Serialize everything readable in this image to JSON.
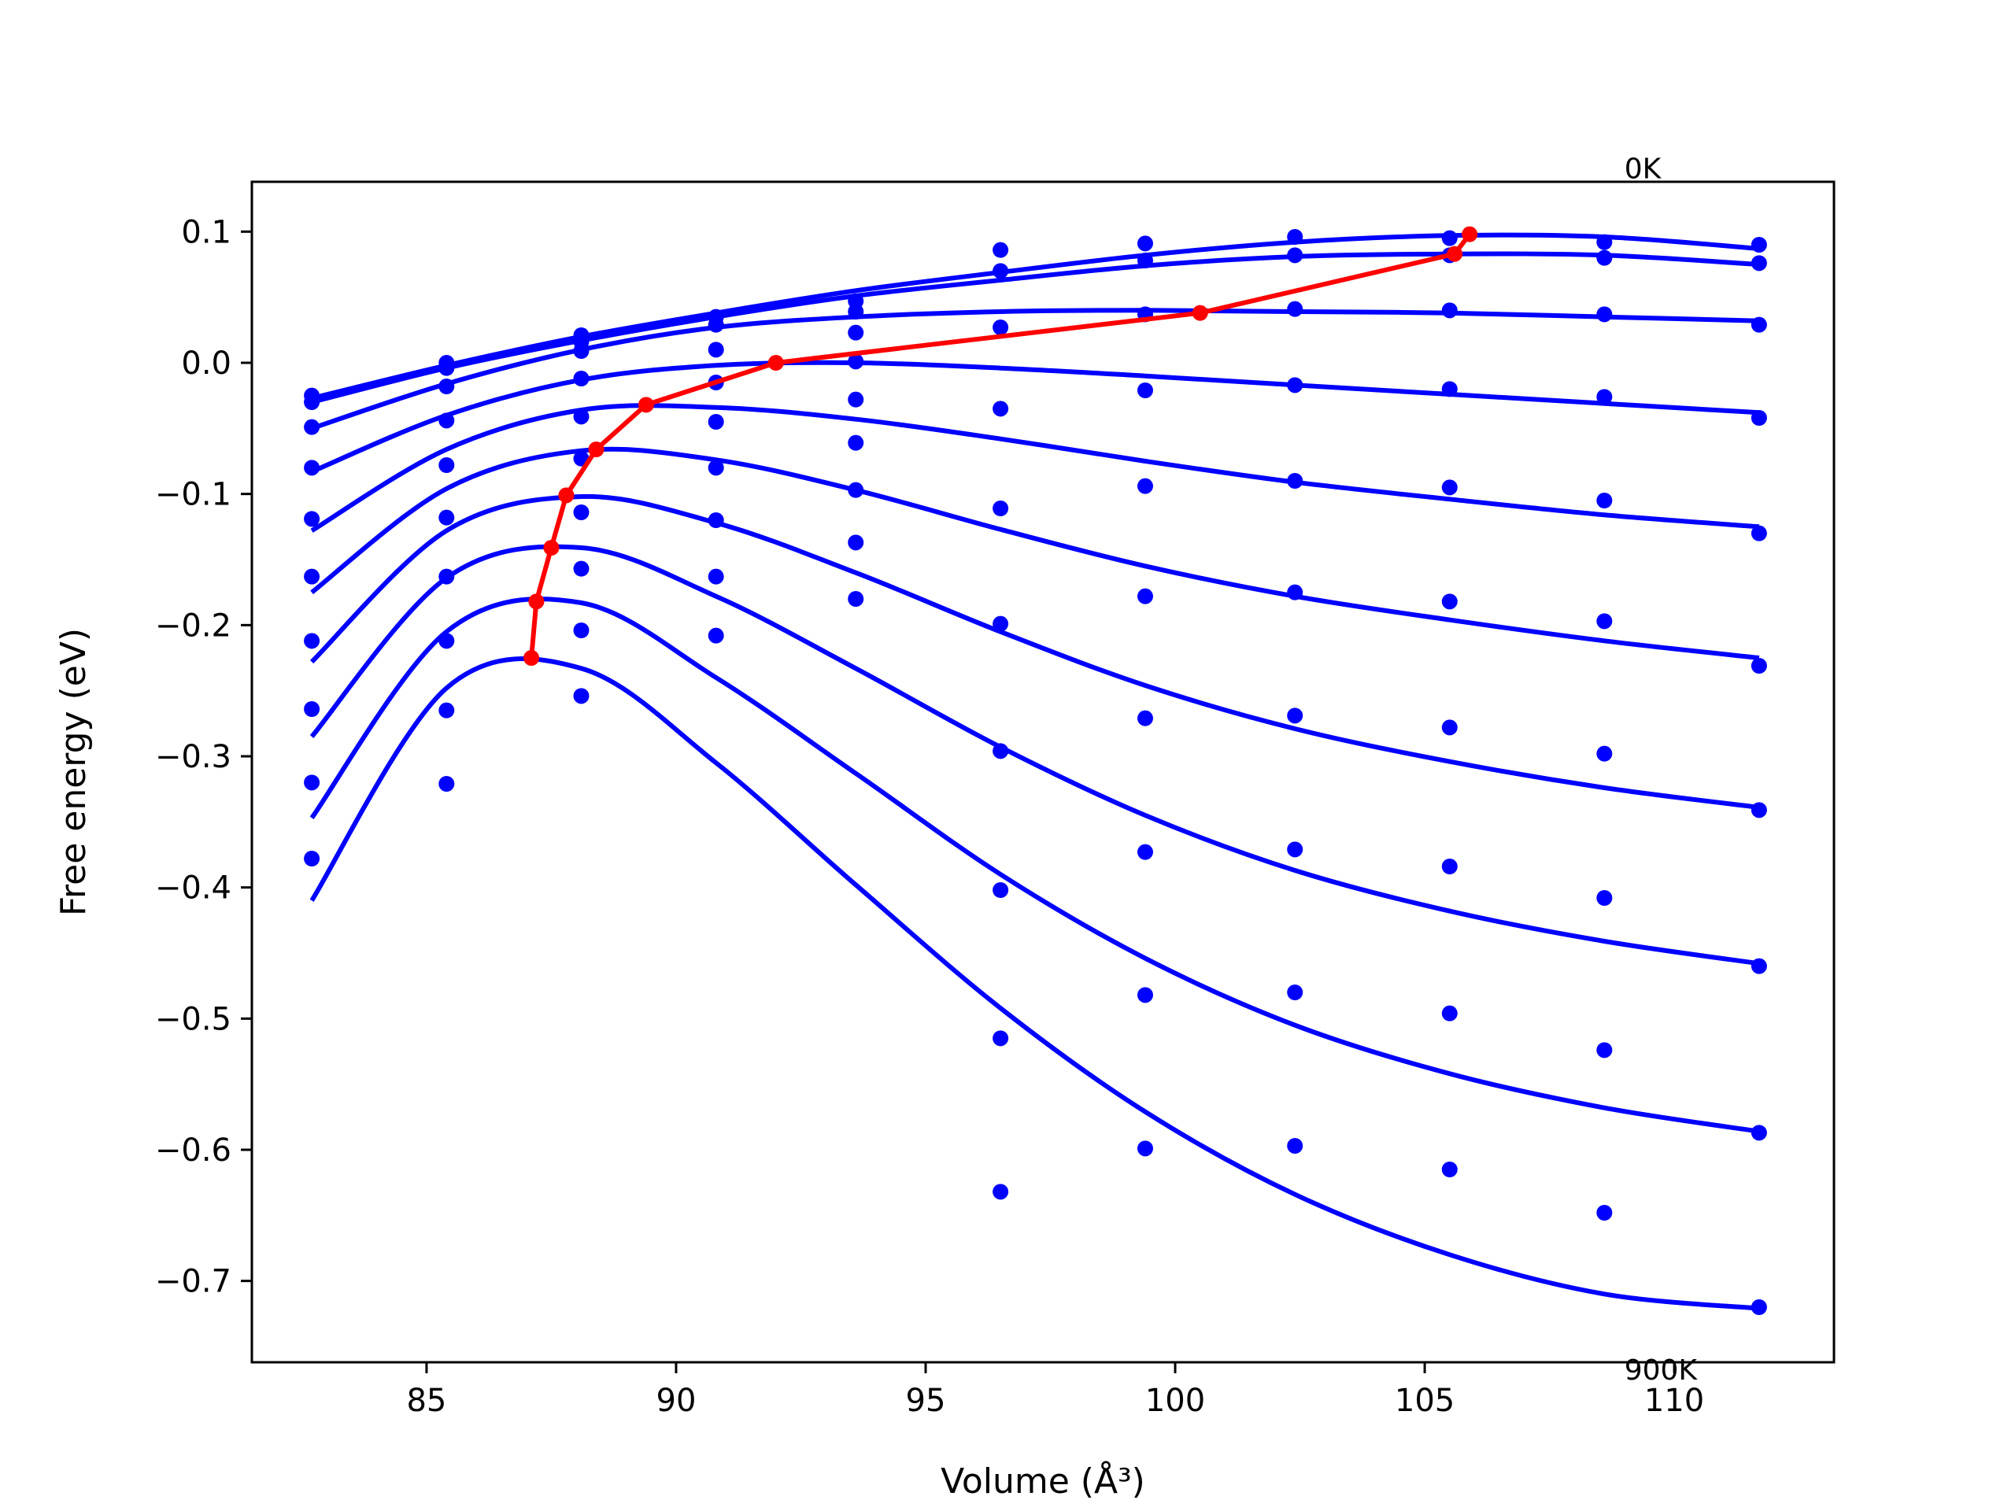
{
  "chart_data": {
    "type": "line",
    "xlabel": "Volume (Å³)",
    "ylabel": "Free energy (eV)",
    "xlim": [
      81.5,
      113.2
    ],
    "ylim": [
      -0.762,
      0.138
    ],
    "xticks": [
      85,
      90,
      95,
      100,
      105,
      110
    ],
    "yticks": [
      0.1,
      0.0,
      -0.1,
      -0.2,
      -0.3,
      -0.4,
      -0.5,
      -0.6,
      -0.7
    ],
    "xtick_labels": [
      "85",
      "90",
      "95",
      "100",
      "105",
      "110"
    ],
    "ytick_labels": [
      "0.1",
      "0.0",
      "−0.1",
      "−0.2",
      "−0.3",
      "−0.4",
      "−0.5",
      "−0.6",
      "−0.7"
    ],
    "annotations": [
      {
        "text": "0K",
        "x": 109.0,
        "y": 0.148
      },
      {
        "text": "900K",
        "x": 109.0,
        "y": -0.768
      }
    ],
    "grid": false,
    "legend": "none",
    "colors": {
      "data": "#0000ff",
      "fit": "#0000ff",
      "minimum": "#ff0000"
    },
    "volumes": [
      82.7,
      85.4,
      88.1,
      90.8,
      93.6,
      96.5,
      99.4,
      102.4,
      105.5,
      108.6,
      111.7
    ],
    "series": [
      {
        "values": [
          -0.025,
          0.0,
          0.021,
          0.035,
          0.047,
          0.086,
          0.091,
          0.096,
          0.095,
          0.092,
          0.09
        ],
        "fit": [
          [
            82.7,
            -0.027
          ],
          [
            85.4,
            -0.002
          ],
          [
            88.1,
            0.02
          ],
          [
            90.8,
            0.038
          ],
          [
            93.6,
            0.055
          ],
          [
            96.5,
            0.069
          ],
          [
            99.4,
            0.082
          ],
          [
            102.4,
            0.092
          ],
          [
            105.5,
            0.097
          ],
          [
            108.6,
            0.096
          ],
          [
            111.7,
            0.087
          ]
        ]
      },
      {
        "values": [
          -0.03,
          -0.004,
          0.016,
          0.029,
          0.039,
          0.07,
          0.078,
          0.082,
          0.082,
          0.08,
          0.076
        ],
        "fit": [
          [
            82.7,
            -0.03
          ],
          [
            85.4,
            -0.004
          ],
          [
            88.1,
            0.017
          ],
          [
            90.8,
            0.035
          ],
          [
            93.6,
            0.051
          ],
          [
            96.5,
            0.063
          ],
          [
            99.4,
            0.074
          ],
          [
            102.4,
            0.081
          ],
          [
            105.5,
            0.083
          ],
          [
            108.6,
            0.082
          ],
          [
            111.7,
            0.075
          ]
        ]
      },
      {
        "values": [
          -0.049,
          -0.018,
          0.009,
          0.01,
          0.023,
          0.027,
          0.037,
          0.041,
          0.04,
          0.037,
          0.029
        ],
        "fit": [
          [
            82.7,
            -0.05
          ],
          [
            85.4,
            -0.016
          ],
          [
            88.1,
            0.01
          ],
          [
            90.8,
            0.027
          ],
          [
            93.6,
            0.035
          ],
          [
            96.5,
            0.039
          ],
          [
            99.4,
            0.04
          ],
          [
            102.4,
            0.039
          ],
          [
            105.5,
            0.038
          ],
          [
            108.6,
            0.035
          ],
          [
            111.7,
            0.032
          ]
        ]
      },
      {
        "values": [
          -0.08,
          -0.044,
          -0.012,
          -0.015,
          0.001,
          -0.035,
          -0.021,
          -0.017,
          -0.02,
          -0.026,
          -0.042
        ],
        "fit": [
          [
            82.7,
            -0.083
          ],
          [
            85.4,
            -0.04
          ],
          [
            88.1,
            -0.013
          ],
          [
            90.8,
            -0.002
          ],
          [
            93.6,
            0.0
          ],
          [
            96.5,
            -0.004
          ],
          [
            99.4,
            -0.01
          ],
          [
            102.4,
            -0.017
          ],
          [
            105.5,
            -0.024
          ],
          [
            108.6,
            -0.031
          ],
          [
            111.7,
            -0.038
          ]
        ]
      },
      {
        "values": [
          -0.119,
          -0.078,
          -0.041,
          -0.045,
          -0.028,
          -0.111,
          -0.094,
          -0.09,
          -0.095,
          -0.105,
          -0.13
        ],
        "fit": [
          [
            82.7,
            -0.128
          ],
          [
            85.4,
            -0.066
          ],
          [
            88.1,
            -0.036
          ],
          [
            90.8,
            -0.034
          ],
          [
            93.6,
            -0.043
          ],
          [
            96.5,
            -0.058
          ],
          [
            99.4,
            -0.075
          ],
          [
            102.4,
            -0.091
          ],
          [
            105.5,
            -0.104
          ],
          [
            108.6,
            -0.116
          ],
          [
            111.7,
            -0.125
          ]
        ]
      },
      {
        "values": [
          -0.163,
          -0.118,
          -0.073,
          -0.08,
          -0.061,
          -0.199,
          -0.178,
          -0.175,
          -0.182,
          -0.197,
          -0.231
        ],
        "fit": [
          [
            82.7,
            -0.175
          ],
          [
            85.4,
            -0.096
          ],
          [
            88.1,
            -0.067
          ],
          [
            90.8,
            -0.074
          ],
          [
            93.6,
            -0.097
          ],
          [
            96.5,
            -0.127
          ],
          [
            99.4,
            -0.155
          ],
          [
            102.4,
            -0.178
          ],
          [
            105.5,
            -0.196
          ],
          [
            108.6,
            -0.212
          ],
          [
            111.7,
            -0.225
          ]
        ]
      },
      {
        "values": [
          -0.212,
          -0.163,
          -0.114,
          -0.12,
          -0.097,
          -0.296,
          -0.271,
          -0.269,
          -0.278,
          -0.298,
          -0.341
        ],
        "fit": [
          [
            82.7,
            -0.228
          ],
          [
            85.4,
            -0.128
          ],
          [
            88.1,
            -0.102
          ],
          [
            90.8,
            -0.122
          ],
          [
            93.6,
            -0.16
          ],
          [
            96.5,
            -0.205
          ],
          [
            99.4,
            -0.246
          ],
          [
            102.4,
            -0.279
          ],
          [
            105.5,
            -0.304
          ],
          [
            108.6,
            -0.324
          ],
          [
            111.7,
            -0.339
          ]
        ]
      },
      {
        "values": [
          -0.264,
          -0.212,
          -0.157,
          -0.163,
          -0.137,
          -0.402,
          -0.373,
          -0.371,
          -0.384,
          -0.408,
          -0.46
        ],
        "fit": [
          [
            82.7,
            -0.285
          ],
          [
            85.4,
            -0.164
          ],
          [
            88.1,
            -0.141
          ],
          [
            90.8,
            -0.178
          ],
          [
            93.6,
            -0.233
          ],
          [
            96.5,
            -0.293
          ],
          [
            99.4,
            -0.345
          ],
          [
            102.4,
            -0.387
          ],
          [
            105.5,
            -0.418
          ],
          [
            108.6,
            -0.441
          ],
          [
            111.7,
            -0.458
          ]
        ]
      },
      {
        "values": [
          -0.32,
          -0.265,
          -0.204,
          -0.208,
          -0.18,
          -0.515,
          -0.482,
          -0.48,
          -0.496,
          -0.524,
          -0.587
        ],
        "fit": [
          [
            82.7,
            -0.347
          ],
          [
            85.4,
            -0.205
          ],
          [
            88.1,
            -0.183
          ],
          [
            90.8,
            -0.24
          ],
          [
            93.6,
            -0.313
          ],
          [
            96.5,
            -0.39
          ],
          [
            99.4,
            -0.454
          ],
          [
            102.4,
            -0.505
          ],
          [
            105.5,
            -0.542
          ],
          [
            108.6,
            -0.568
          ],
          [
            111.7,
            -0.586
          ]
        ]
      },
      {
        "values": [
          -0.378,
          -0.321,
          -0.254,
          null,
          null,
          -0.632,
          -0.599,
          -0.597,
          -0.615,
          -0.648,
          -0.72
        ],
        "fit": [
          [
            82.7,
            -0.41
          ],
          [
            85.4,
            -0.248
          ],
          [
            88.1,
            -0.233
          ],
          [
            90.8,
            -0.305
          ],
          [
            93.6,
            -0.398
          ],
          [
            96.5,
            -0.492
          ],
          [
            99.4,
            -0.571
          ],
          [
            102.4,
            -0.634
          ],
          [
            105.5,
            -0.68
          ],
          [
            108.6,
            -0.71
          ],
          [
            111.7,
            -0.721
          ]
        ]
      }
    ],
    "minimum_path": {
      "x": [
        105.9,
        105.6,
        100.5,
        92.0,
        89.4,
        88.4,
        87.8,
        87.5,
        87.2,
        87.1
      ],
      "y": [
        0.098,
        0.083,
        0.038,
        0.0,
        -0.032,
        -0.066,
        -0.101,
        -0.141,
        -0.182,
        -0.225
      ]
    }
  }
}
